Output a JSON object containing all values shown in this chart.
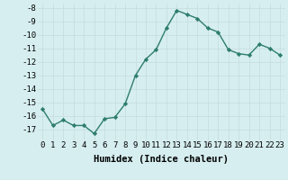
{
  "x": [
    0,
    1,
    2,
    3,
    4,
    5,
    6,
    7,
    8,
    9,
    10,
    11,
    12,
    13,
    14,
    15,
    16,
    17,
    18,
    19,
    20,
    21,
    22,
    23
  ],
  "y": [
    -15.5,
    -16.7,
    -16.3,
    -16.7,
    -16.7,
    -17.3,
    -16.2,
    -16.1,
    -15.1,
    -13.0,
    -11.8,
    -11.1,
    -9.5,
    -8.2,
    -8.5,
    -8.8,
    -9.5,
    -9.8,
    -11.1,
    -11.4,
    -11.5,
    -10.7,
    -11.0,
    -11.5
  ],
  "xlabel": "Humidex (Indice chaleur)",
  "ylim": [
    -17.8,
    -7.7
  ],
  "xlim": [
    -0.5,
    23.5
  ],
  "yticks": [
    -8,
    -9,
    -10,
    -11,
    -12,
    -13,
    -14,
    -15,
    -16,
    -17
  ],
  "xtick_labels": [
    "0",
    "1",
    "2",
    "3",
    "4",
    "5",
    "6",
    "7",
    "8",
    "9",
    "10",
    "11",
    "12",
    "13",
    "14",
    "15",
    "16",
    "17",
    "18",
    "19",
    "20",
    "21",
    "22",
    "23"
  ],
  "line_color": "#2e7d6e",
  "marker": "D",
  "marker_size": 2.2,
  "bg_color": "#d6eef0",
  "grid_color": "#c8dfe0",
  "tick_fontsize": 6.5,
  "label_fontsize": 7.5
}
